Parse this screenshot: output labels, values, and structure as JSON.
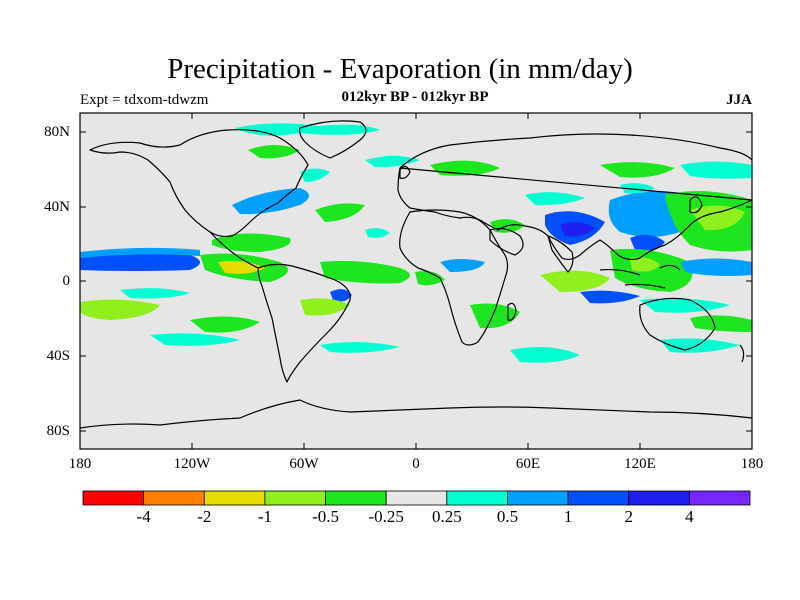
{
  "title": "Precipitation - Evaporation (in mm/day)",
  "experiment": "Expt = tdxom-tdwzm",
  "subtitle": "012kyr BP - 012kyr BP",
  "season": "JJA",
  "map": {
    "type": "contour_map",
    "projection": "cylindrical equidistant",
    "lon_range": [
      -180,
      180
    ],
    "lat_range": [
      -90,
      90
    ],
    "lat_ticks": [
      "80N",
      "40N",
      "0",
      "40S",
      "80S"
    ],
    "lon_ticks": [
      "180",
      "120W",
      "60W",
      "0",
      "60E",
      "120E",
      "180"
    ],
    "missing_color": "#e6e6e6",
    "coastline_color": "#000000"
  },
  "colorbar": {
    "colors": [
      "#ff0000",
      "#ff8000",
      "#e6dc00",
      "#8ff01e",
      "#1ee61e",
      "#e6e6e6",
      "#00ffd2",
      "#00a0ff",
      "#0050ff",
      "#1e1ef0",
      "#7828ff"
    ],
    "labels": [
      "-4",
      "-2",
      "-1",
      "-0.5",
      "-0.25",
      "0.25",
      "0.5",
      "1",
      "2",
      "4"
    ]
  }
}
